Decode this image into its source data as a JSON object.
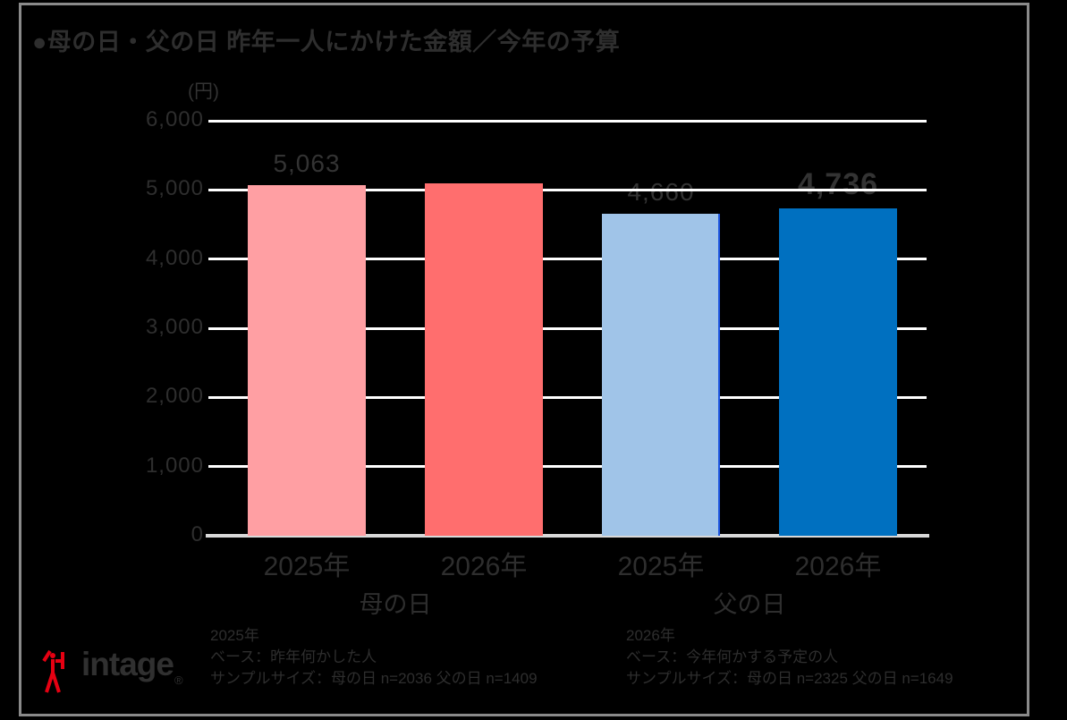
{
  "title": "●母の日・父の日 昨年一人にかけた金額／今年の予算",
  "chart_data": {
    "type": "bar",
    "title": "母の日・父の日 昨年一人にかけた金額／今年の予算",
    "ylabel": "(円)",
    "ylim": [
      0,
      6000
    ],
    "yticks": [
      0,
      1000,
      2000,
      3000,
      4000,
      5000,
      6000
    ],
    "ytick_labels": [
      "0",
      "1,000",
      "2,000",
      "3,000",
      "4,000",
      "5,000",
      "6,000"
    ],
    "grid": true,
    "legend": "none",
    "categories": [
      "2025年",
      "2026年",
      "2025年",
      "2026年"
    ],
    "group_labels": [
      "母の日",
      "父の日"
    ],
    "series": [
      {
        "id": "mothers-day-2025",
        "group": "母の日",
        "category": "2025年",
        "value": 5063,
        "label": "5,063",
        "bold_label": false,
        "color": "#FF9FA3"
      },
      {
        "id": "mothers-day-2026",
        "group": "母の日",
        "category": "2026年",
        "value": 5100,
        "label": "",
        "bold_label": true,
        "color": "#FF6E6E"
      },
      {
        "id": "fathers-day-2025",
        "group": "父の日",
        "category": "2025年",
        "value": 4660,
        "label": "4,660",
        "bold_label": false,
        "color": "#A0C4E8",
        "right_edge_color": "#1E56E0"
      },
      {
        "id": "fathers-day-2026",
        "group": "父の日",
        "category": "2026年",
        "value": 4736,
        "label": "4,736",
        "bold_label": true,
        "color": "#0070C0"
      }
    ]
  },
  "footnotes": {
    "left": {
      "lines": [
        "2025年",
        "ベース：昨年何かした人",
        "サンプルサイズ：母の日 n=2036 父の日 n=1409"
      ]
    },
    "right": {
      "lines": [
        "2026年",
        "ベース：今年何かする予定の人",
        "サンプルサイズ：母の日 n=2325 父の日 n=1649"
      ]
    }
  },
  "logo": {
    "wordmark": "intage",
    "registered_mark": "®",
    "mark_color": "#E60012",
    "text_color": "#303030"
  },
  "colors": {
    "background": "#000000",
    "frame": "#8A8A8A",
    "grid": "#FFFFFF",
    "baseline": "#D9D9D9",
    "text": "#333333"
  }
}
